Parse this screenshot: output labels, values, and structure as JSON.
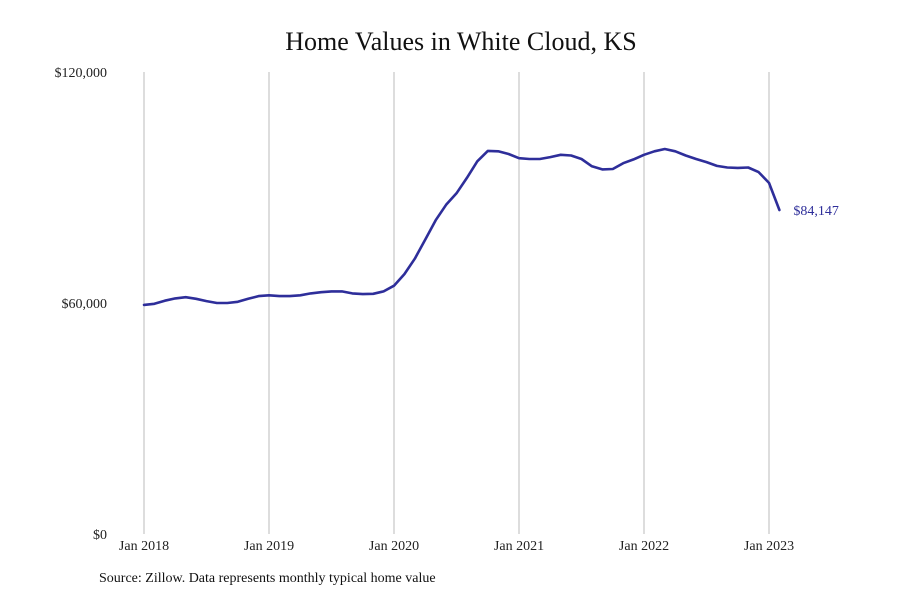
{
  "chart_data": {
    "type": "line",
    "title": "Home Values in White Cloud, KS",
    "xlabel": "",
    "ylabel": "",
    "ylim": [
      0,
      120000
    ],
    "y_ticks": [
      "$0",
      "$60,000",
      "$120,000"
    ],
    "x_ticks": [
      "Jan 2018",
      "Jan 2019",
      "Jan 2020",
      "Jan 2021",
      "Jan 2022",
      "Jan 2023"
    ],
    "grid": "vertical lines at each January",
    "line_color": "#2e2e9a",
    "end_label": "$84,147",
    "series": [
      {
        "x": [
          "2018-01",
          "2018-02",
          "2018-03",
          "2018-04",
          "2018-05",
          "2018-06",
          "2018-07",
          "2018-08",
          "2018-09",
          "2018-10",
          "2018-11",
          "2018-12",
          "2019-01",
          "2019-02",
          "2019-03",
          "2019-04",
          "2019-05",
          "2019-06",
          "2019-07",
          "2019-08",
          "2019-09",
          "2019-10",
          "2019-11",
          "2019-12",
          "2020-01",
          "2020-02",
          "2020-03",
          "2020-04",
          "2020-05",
          "2020-06",
          "2020-07",
          "2020-08",
          "2020-09",
          "2020-10",
          "2020-11",
          "2020-12",
          "2021-01",
          "2021-02",
          "2021-03",
          "2021-04",
          "2021-05",
          "2021-06",
          "2021-07",
          "2021-08",
          "2021-09",
          "2021-10",
          "2021-11",
          "2021-12",
          "2022-01",
          "2022-02",
          "2022-03",
          "2022-04",
          "2022-05",
          "2022-06",
          "2022-07",
          "2022-08",
          "2022-09",
          "2022-10",
          "2022-11",
          "2022-12",
          "2023-01",
          "2023-02"
        ],
        "values": [
          59500,
          59800,
          60600,
          61200,
          61500,
          61100,
          60500,
          60000,
          60000,
          60300,
          61100,
          61800,
          62000,
          61800,
          61800,
          62000,
          62500,
          62800,
          63000,
          63000,
          62500,
          62300,
          62400,
          63000,
          64500,
          67500,
          71500,
          76500,
          81500,
          85500,
          88500,
          92500,
          96800,
          99500,
          99400,
          98700,
          97600,
          97400,
          97400,
          97900,
          98500,
          98300,
          97400,
          95500,
          94700,
          94800,
          96300,
          97300,
          98500,
          99400,
          100000,
          99400,
          98300,
          97400,
          96600,
          95600,
          95200,
          95100,
          95200,
          94000,
          91200,
          84147
        ]
      }
    ]
  },
  "source": "Source: Zillow. Data represents monthly typical home value"
}
